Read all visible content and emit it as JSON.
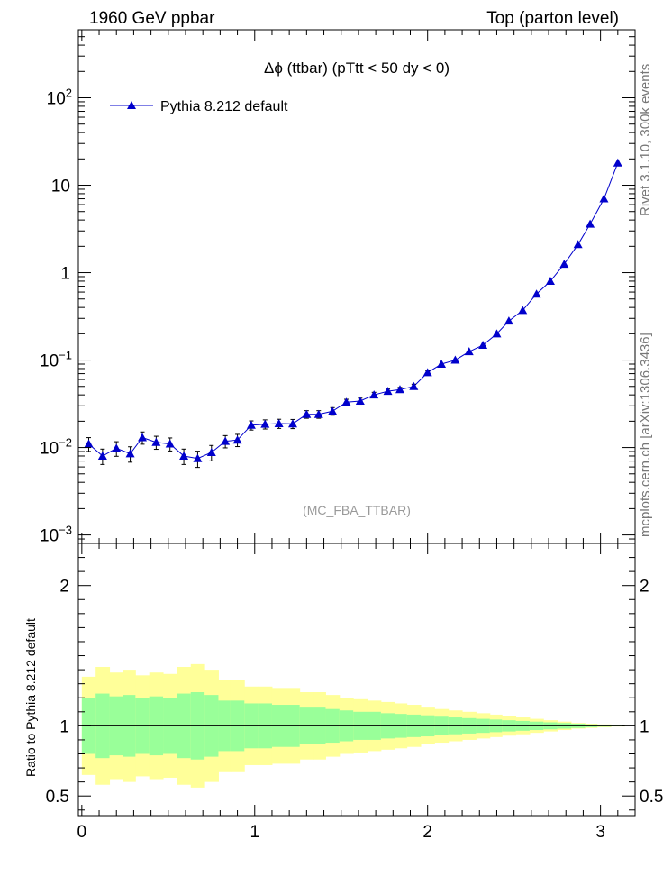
{
  "header": {
    "left": "1960 GeV ppbar",
    "right": "Top (parton level)"
  },
  "side_labels": {
    "rivet": "Rivet 3.1.10,  300k events",
    "mcplots": "mcplots.cern.ch [arXiv:1306.3436]"
  },
  "colors": {
    "series": "#0000cc",
    "band_inner": "#99ff99",
    "band_outer": "#ffff99",
    "watermark": "#999999",
    "side_text": "#777777"
  },
  "chart_data": [
    {
      "type": "line",
      "title": "Δϕ (ttbar) (pTtt < 50 dy < 0)",
      "watermark": "(MC_FBA_TTBAR)",
      "yscale": "log",
      "xlim": [
        -0.02,
        3.2
      ],
      "ylim": [
        0.0008,
        600
      ],
      "x_ticks": [
        0,
        1,
        2,
        3
      ],
      "y_ticks": [
        {
          "value": 0.001,
          "label": "10",
          "exp": "−3"
        },
        {
          "value": 0.01,
          "label": "10",
          "exp": "−2"
        },
        {
          "value": 0.1,
          "label": "10",
          "exp": "−1"
        },
        {
          "value": 1,
          "label": "1",
          "exp": ""
        },
        {
          "value": 10,
          "label": "10",
          "exp": ""
        },
        {
          "value": 100,
          "label": "10",
          "exp": "2"
        }
      ],
      "legend": {
        "position": "top-left"
      },
      "series": [
        {
          "name": "Pythia 8.212 default",
          "x": [
            0.04,
            0.12,
            0.2,
            0.28,
            0.35,
            0.43,
            0.51,
            0.59,
            0.67,
            0.75,
            0.83,
            0.9,
            0.98,
            1.06,
            1.14,
            1.22,
            1.3,
            1.37,
            1.45,
            1.53,
            1.61,
            1.69,
            1.77,
            1.84,
            1.92,
            2.0,
            2.08,
            2.16,
            2.24,
            2.32,
            2.4,
            2.47,
            2.55,
            2.63,
            2.71,
            2.79,
            2.87,
            2.94,
            3.02,
            3.1
          ],
          "y": [
            0.011,
            0.008,
            0.0098,
            0.0085,
            0.013,
            0.0115,
            0.011,
            0.008,
            0.0075,
            0.0088,
            0.0118,
            0.0122,
            0.018,
            0.0185,
            0.0188,
            0.0187,
            0.024,
            0.024,
            0.026,
            0.033,
            0.034,
            0.04,
            0.044,
            0.046,
            0.05,
            0.072,
            0.09,
            0.1,
            0.125,
            0.148,
            0.2,
            0.28,
            0.37,
            0.57,
            0.8,
            1.25,
            2.1,
            3.6,
            7.0,
            18.0
          ],
          "err_rel": [
            0.18,
            0.2,
            0.19,
            0.2,
            0.16,
            0.17,
            0.17,
            0.2,
            0.21,
            0.2,
            0.16,
            0.16,
            0.12,
            0.12,
            0.12,
            0.12,
            0.1,
            0.1,
            0.1,
            0.08,
            0.08,
            0.07,
            0.06,
            0.06,
            0.06,
            0.05,
            0.04,
            0.04,
            0.035,
            0.03,
            0.03,
            0.025,
            0.02,
            0.02,
            0.015,
            0.012,
            0.01,
            0.008,
            0.006,
            0.004
          ]
        }
      ]
    },
    {
      "type": "area",
      "ylabel": "Ratio to Pythia 8.212 default",
      "xlim": [
        -0.02,
        3.2
      ],
      "ylim": [
        0.36,
        2.3
      ],
      "x_ticks": [
        0,
        1,
        2,
        3
      ],
      "y_ticks": [
        0.5,
        1,
        2
      ],
      "reference": 1,
      "bin_edges": [
        0.0,
        0.08,
        0.16,
        0.24,
        0.31,
        0.39,
        0.47,
        0.55,
        0.63,
        0.71,
        0.79,
        0.86,
        0.94,
        1.02,
        1.1,
        1.18,
        1.26,
        1.34,
        1.41,
        1.49,
        1.57,
        1.65,
        1.73,
        1.81,
        1.88,
        1.96,
        2.04,
        2.12,
        2.2,
        2.28,
        2.36,
        2.43,
        2.51,
        2.59,
        2.67,
        2.75,
        2.83,
        2.91,
        2.98,
        3.06,
        3.14
      ],
      "band_inner_half": [
        0.2,
        0.23,
        0.21,
        0.22,
        0.2,
        0.21,
        0.2,
        0.23,
        0.24,
        0.22,
        0.18,
        0.18,
        0.16,
        0.16,
        0.15,
        0.15,
        0.13,
        0.13,
        0.12,
        0.11,
        0.1,
        0.1,
        0.09,
        0.085,
        0.08,
        0.075,
        0.065,
        0.06,
        0.055,
        0.05,
        0.045,
        0.04,
        0.035,
        0.03,
        0.025,
        0.02,
        0.015,
        0.01,
        0.006,
        0.003
      ],
      "band_outer_half": [
        0.35,
        0.42,
        0.38,
        0.4,
        0.36,
        0.38,
        0.37,
        0.42,
        0.44,
        0.4,
        0.33,
        0.33,
        0.28,
        0.28,
        0.27,
        0.27,
        0.24,
        0.24,
        0.22,
        0.2,
        0.19,
        0.18,
        0.17,
        0.16,
        0.15,
        0.13,
        0.12,
        0.11,
        0.1,
        0.09,
        0.08,
        0.07,
        0.06,
        0.05,
        0.04,
        0.03,
        0.02,
        0.015,
        0.01,
        0.005
      ]
    }
  ]
}
